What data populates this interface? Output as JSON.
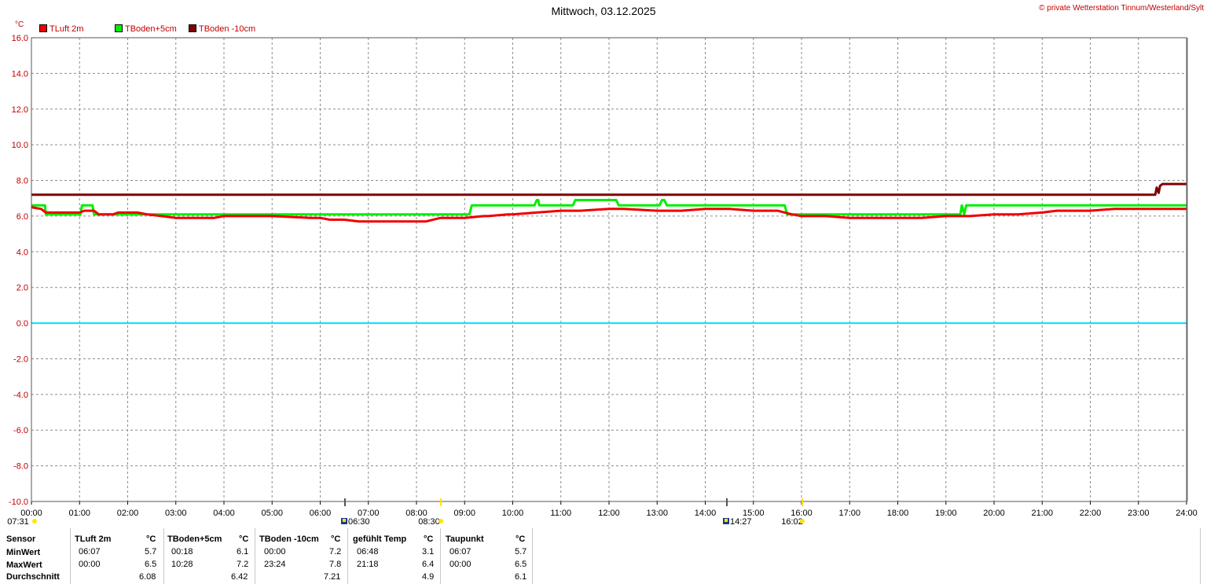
{
  "header": {
    "title": "Mittwoch, 03.12.2025",
    "copyright": "© private Wetterstation Tinnum/Westerland/Sylt",
    "unit": "°C"
  },
  "chart_data": {
    "type": "line",
    "x_unit": "time of day (hours)",
    "xlim": [
      0,
      24
    ],
    "ylim": [
      -10,
      16
    ],
    "grid": true,
    "x_tick_labels": [
      "00:00",
      "01:00",
      "02:00",
      "03:00",
      "04:00",
      "05:00",
      "06:00",
      "07:00",
      "08:00",
      "09:00",
      "10:00",
      "11:00",
      "12:00",
      "13:00",
      "14:00",
      "15:00",
      "16:00",
      "17:00",
      "18:00",
      "19:00",
      "20:00",
      "21:00",
      "22:00",
      "23:00",
      "24:00"
    ],
    "y_ticks": [
      16.0,
      14.0,
      12.0,
      10.0,
      8.0,
      6.0,
      4.0,
      2.0,
      0.0,
      -2.0,
      -4.0,
      -6.0,
      -8.0,
      -10.0
    ],
    "y_tick_labels": [
      "16.0",
      "14.0",
      "12.0",
      "10.0",
      "8.0",
      "6.0",
      "4.0",
      "2.0",
      "0.0",
      "-2.0",
      "-4.0",
      "-6.0",
      "-8.0",
      "-10.0"
    ],
    "legend_placement": "top-left",
    "zero_line_color": "#00e0ff",
    "series": [
      {
        "name": "TLuft 2m",
        "color": "#ee0000",
        "x": [
          0,
          0.2,
          0.3,
          1.0,
          1.1,
          1.3,
          1.4,
          1.7,
          1.8,
          2.2,
          2.4,
          2.7,
          3.0,
          3.8,
          4.0,
          5.0,
          5.8,
          6.0,
          6.2,
          6.5,
          6.8,
          7.0,
          8.0,
          8.2,
          8.5,
          9.0,
          9.4,
          9.5,
          9.9,
          10.0,
          10.5,
          11.0,
          11.4,
          12.0,
          12.3,
          13.0,
          13.5,
          14.0,
          14.5,
          15.0,
          15.5,
          15.8,
          16.0,
          16.5,
          17.0,
          17.5,
          18.0,
          18.5,
          19.0,
          19.5,
          20.0,
          20.5,
          21.0,
          21.3,
          22.0,
          22.5,
          23.0,
          23.3,
          23.5,
          24.0
        ],
        "y": [
          6.5,
          6.4,
          6.2,
          6.2,
          6.3,
          6.3,
          6.1,
          6.1,
          6.2,
          6.2,
          6.1,
          6.0,
          5.9,
          5.9,
          6.0,
          6.0,
          5.9,
          5.9,
          5.8,
          5.8,
          5.7,
          5.7,
          5.7,
          5.7,
          5.9,
          5.9,
          6.0,
          6.0,
          6.1,
          6.1,
          6.2,
          6.3,
          6.3,
          6.4,
          6.4,
          6.3,
          6.3,
          6.4,
          6.4,
          6.3,
          6.3,
          6.1,
          6.0,
          6.0,
          5.9,
          5.9,
          5.9,
          5.9,
          6.0,
          6.0,
          6.1,
          6.1,
          6.2,
          6.3,
          6.3,
          6.4,
          6.4,
          6.4,
          6.4,
          6.4
        ]
      },
      {
        "name": "TBoden+5cm",
        "color": "#00ee00",
        "x": [
          0,
          0.28,
          0.3,
          1.02,
          1.05,
          1.27,
          1.3,
          9.1,
          9.15,
          10.45,
          10.5,
          10.53,
          10.55,
          10.9,
          10.95,
          11.25,
          11.3,
          12.15,
          12.2,
          13.05,
          13.1,
          13.15,
          13.2,
          15.65,
          15.7,
          19.3,
          19.33,
          19.38,
          19.42,
          24.0
        ],
        "y": [
          6.6,
          6.6,
          6.1,
          6.1,
          6.6,
          6.6,
          6.1,
          6.1,
          6.6,
          6.6,
          6.9,
          6.9,
          6.6,
          6.6,
          6.6,
          6.6,
          6.9,
          6.9,
          6.6,
          6.6,
          6.9,
          6.9,
          6.6,
          6.6,
          6.1,
          6.1,
          6.6,
          6.1,
          6.6,
          6.6
        ]
      },
      {
        "name": "TBoden -10cm",
        "color": "#800000",
        "x": [
          0,
          23.35,
          23.38,
          23.42,
          23.45,
          23.5,
          24.0
        ],
        "y": [
          7.2,
          7.2,
          7.6,
          7.3,
          7.7,
          7.8,
          7.8
        ]
      }
    ],
    "sun_markers": [
      {
        "time_label": "07:31",
        "hour": 7.5167,
        "icon": "sunrise-icon"
      },
      {
        "time_label": "16:02",
        "hour": 16.0333,
        "icon": "sunset-icon"
      }
    ],
    "moon_markers": [
      {
        "time_label": "06:30",
        "hour": 6.5,
        "icon": "moonrise-icon"
      },
      {
        "time_label": "14:27",
        "hour": 14.45,
        "icon": "moonset-icon"
      }
    ],
    "sun_marker_labels": [
      "07:31",
      "08:30",
      "16:02"
    ],
    "moon_marker_labels": [
      "06:30",
      "14:27"
    ]
  },
  "stats_table": {
    "row_header": "Sensor",
    "row_labels": [
      "MinWert",
      "MaxWert",
      "Durchschnitt"
    ],
    "columns": [
      {
        "name": "TLuft 2m",
        "unit": "°C",
        "min_time": "06:07",
        "min": "5.7",
        "max_time": "00:00",
        "max": "6.5",
        "avg": "6.08"
      },
      {
        "name": "TBoden+5cm",
        "unit": "°C",
        "min_time": "00:18",
        "min": "6.1",
        "max_time": "10:28",
        "max": "7.2",
        "avg": "6.42"
      },
      {
        "name": "TBoden -10cm",
        "unit": "°C",
        "min_time": "00:00",
        "min": "7.2",
        "max_time": "23:24",
        "max": "7.8",
        "avg": "7.21"
      },
      {
        "name": "gefühlt Temp",
        "unit": "°C",
        "min_time": "06:48",
        "min": "3.1",
        "max_time": "21:18",
        "max": "6.4",
        "avg": "4.9"
      },
      {
        "name": "Taupunkt",
        "unit": "°C",
        "min_time": "06:07",
        "min": "5.7",
        "max_time": "00:00",
        "max": "6.5",
        "avg": "6.1"
      }
    ]
  }
}
